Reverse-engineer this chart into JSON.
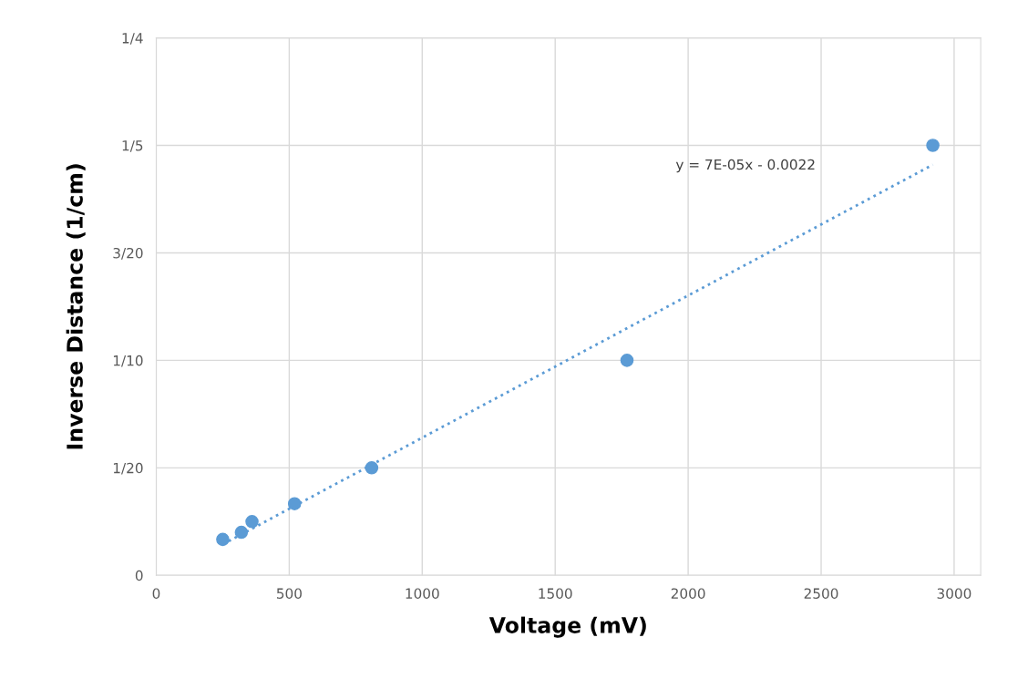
{
  "chart_data": {
    "type": "scatter",
    "xlabel": "Voltage (mV)",
    "ylabel": "Inverse Distance (1/cm)",
    "series": [
      {
        "color": "#5b9bd5",
        "marker": "circle",
        "x": [
          250,
          320,
          360,
          520,
          810,
          1770,
          2920
        ],
        "values": [
          0.0167,
          0.02,
          0.025,
          0.0333,
          0.05,
          0.1,
          0.2
        ]
      },
      {
        "type": "line",
        "color": "#5b9bd5",
        "line_style": "dotted",
        "marker": "none",
        "x": [
          250,
          2920
        ],
        "values": [
          0.0144,
          0.191
        ]
      }
    ],
    "xlim": [
      0,
      3100
    ],
    "xticks": [
      0,
      500,
      1000,
      1500,
      2000,
      2500,
      3000
    ],
    "ylim": [
      0,
      0.25
    ],
    "yticks": [
      0,
      {
        "value": 0.05,
        "label": "1/20"
      },
      {
        "value": 0.1,
        "label": "1/10"
      },
      {
        "value": 0.15,
        "label": "3/20"
      },
      {
        "value": 0.2,
        "label": "1/5"
      },
      {
        "value": 0.25,
        "label": "1/4"
      }
    ],
    "grid": true,
    "legend": false,
    "annotations": [
      "y = 7E-05x - 0.0022"
    ]
  }
}
